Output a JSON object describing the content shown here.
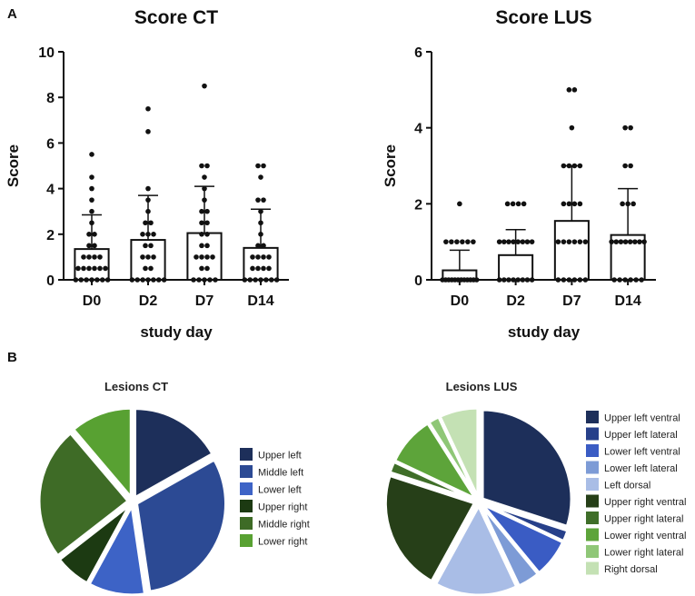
{
  "panels": {
    "a": "A",
    "b": "B"
  },
  "chart_data": [
    {
      "type": "bar",
      "title": "Score CT",
      "xlabel": "study day",
      "ylabel": "Score",
      "ylim": [
        0,
        10
      ],
      "yticks": [
        0,
        2,
        4,
        6,
        8,
        10
      ],
      "categories": [
        "D0",
        "D2",
        "D7",
        "D14"
      ],
      "values": [
        1.35,
        1.75,
        2.05,
        1.4
      ],
      "error_upper": [
        2.85,
        3.7,
        4.1,
        3.1
      ],
      "points": [
        [
          5.5,
          4.5,
          4.0,
          3.5,
          3.0,
          2.5,
          2.0,
          2.0,
          1.5,
          1.5,
          1.0,
          1.0,
          1.0,
          1.0,
          0.5,
          0.5,
          0.5,
          0.5,
          0.5,
          0.5,
          0,
          0,
          0,
          0,
          0,
          0,
          0
        ],
        [
          7.5,
          6.5,
          4.0,
          3.5,
          3.0,
          2.5,
          2.5,
          2.0,
          2.0,
          2.0,
          1.5,
          1.5,
          1.0,
          1.0,
          1.0,
          0.5,
          0.5,
          0,
          0,
          0,
          0,
          0,
          0,
          0
        ],
        [
          8.5,
          5.0,
          5.0,
          4.5,
          4.0,
          3.5,
          3.0,
          3.0,
          2.5,
          2.5,
          2.0,
          2.0,
          1.5,
          1.5,
          1.0,
          1.0,
          1.0,
          1.0,
          0.5,
          0.5,
          0,
          0,
          0,
          0,
          0
        ],
        [
          5.0,
          5.0,
          4.5,
          3.5,
          3.5,
          3.0,
          2.5,
          2.0,
          1.5,
          1.5,
          1.0,
          1.0,
          1.0,
          1.0,
          0.5,
          0.5,
          0.5,
          0.5,
          0,
          0,
          0,
          0,
          0,
          0,
          0
        ]
      ]
    },
    {
      "type": "bar",
      "title": "Score LUS",
      "xlabel": "study day",
      "ylabel": "Score",
      "ylim": [
        0,
        6
      ],
      "yticks": [
        0,
        2,
        4,
        6
      ],
      "categories": [
        "D0",
        "D2",
        "D7",
        "D14"
      ],
      "values": [
        0.25,
        0.65,
        1.55,
        1.18
      ],
      "error_upper": [
        0.78,
        1.32,
        3.0,
        2.4
      ],
      "points": [
        [
          2,
          1,
          1,
          1,
          1,
          1,
          1,
          0,
          0,
          0,
          0,
          0,
          0,
          0,
          0,
          0,
          0,
          0,
          0
        ],
        [
          2,
          2,
          2,
          2,
          1,
          1,
          1,
          1,
          1,
          1,
          1,
          1,
          0,
          0,
          0,
          0,
          0,
          0,
          0,
          0
        ],
        [
          5,
          5,
          4,
          3,
          3,
          3,
          3,
          2,
          2,
          2,
          2,
          1,
          1,
          1,
          1,
          1,
          1,
          0,
          0,
          0,
          0,
          0,
          0
        ],
        [
          4,
          4,
          3,
          3,
          2,
          2,
          2,
          1,
          1,
          1,
          1,
          1,
          1,
          1,
          1,
          0,
          0,
          0,
          0,
          0,
          0
        ]
      ]
    },
    {
      "type": "pie",
      "title": "Lesions CT",
      "labels": [
        "Upper left",
        "Middle left",
        "Lower left",
        "Upper right",
        "Middle right",
        "Lower right"
      ],
      "values": [
        18,
        33,
        11,
        7,
        26,
        12
      ],
      "colors": [
        "#1d2f5a",
        "#2c4a94",
        "#3d63c6",
        "#1c3a12",
        "#3e6b26",
        "#58a132"
      ]
    },
    {
      "type": "pie",
      "title": "Lesions LUS",
      "labels": [
        "Upper left ventral",
        "Upper left lateral",
        "Lower left ventral",
        "Lower left lateral",
        "Left dorsal",
        "Upper right ventral",
        "Upper right lateral",
        "Lower right ventral",
        "Lower right lateral",
        "Right dorsal"
      ],
      "values": [
        30,
        2,
        7,
        4,
        15,
        22,
        2,
        9,
        2,
        7
      ],
      "colors": [
        "#1d2f5a",
        "#27408a",
        "#3a5cc4",
        "#7d9bd6",
        "#a9bde6",
        "#263f18",
        "#3f6e29",
        "#5da43a",
        "#8fc777",
        "#c4e1b4"
      ]
    }
  ]
}
